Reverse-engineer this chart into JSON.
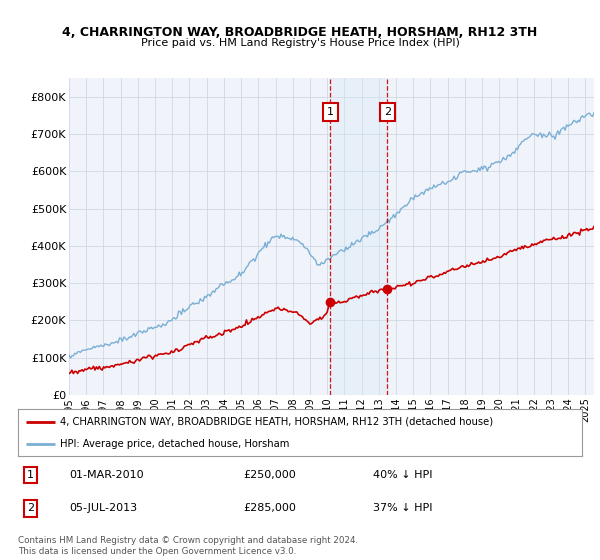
{
  "title": "4, CHARRINGTON WAY, BROADBRIDGE HEATH, HORSHAM, RH12 3TH",
  "subtitle": "Price paid vs. HM Land Registry's House Price Index (HPI)",
  "xlim_start": 1995.0,
  "xlim_end": 2025.5,
  "ylim_min": 0,
  "ylim_max": 850000,
  "yticks": [
    0,
    100000,
    200000,
    300000,
    400000,
    500000,
    600000,
    700000,
    800000
  ],
  "ytick_labels": [
    "£0",
    "£100K",
    "£200K",
    "£300K",
    "£400K",
    "£500K",
    "£600K",
    "£700K",
    "£800K"
  ],
  "sale1_x": 2010.17,
  "sale1_y": 250000,
  "sale1_label": "1",
  "sale2_x": 2013.5,
  "sale2_y": 285000,
  "sale2_label": "2",
  "legend_line1": "4, CHARRINGTON WAY, BROADBRIDGE HEATH, HORSHAM, RH12 3TH (detached house)",
  "legend_line2": "HPI: Average price, detached house, Horsham",
  "note1_num": "1",
  "note1_date": "01-MAR-2010",
  "note1_price": "£250,000",
  "note1_pct": "40% ↓ HPI",
  "note2_num": "2",
  "note2_date": "05-JUL-2013",
  "note2_price": "£285,000",
  "note2_pct": "37% ↓ HPI",
  "footer": "Contains HM Land Registry data © Crown copyright and database right 2024.\nThis data is licensed under the Open Government Licence v3.0.",
  "red_color": "#cc0000",
  "blue_color": "#7bafd4",
  "background_chart": "#f0f4fa",
  "vline_color": "#cc0000",
  "highlight_color": "#d8e8f5"
}
